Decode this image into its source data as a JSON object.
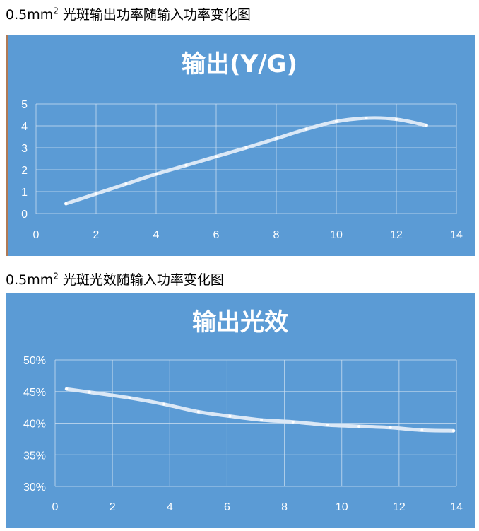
{
  "headings": {
    "chart1": {
      "prefix": "0.5mm",
      "sup": "2",
      "text": " 光斑输出功率随输入功率变化图"
    },
    "chart2": {
      "prefix": "0.5mm",
      "sup": "2",
      "text": " 光斑光效随输入功率变化图"
    }
  },
  "chart_data": [
    {
      "type": "line",
      "title": "输出(Y/G)",
      "xlabel": "",
      "ylabel": "",
      "xlim": [
        0,
        14
      ],
      "ylim": [
        0,
        5
      ],
      "xticks": [
        "0",
        "2",
        "4",
        "6",
        "8",
        "10",
        "12",
        "14"
      ],
      "yticks": [
        "0",
        "1",
        "2",
        "3",
        "4",
        "5"
      ],
      "grid": true,
      "series": [
        {
          "x": [
            1,
            2,
            3,
            4,
            5,
            6,
            7,
            8,
            9,
            10,
            11,
            12,
            13
          ],
          "y": [
            0.45,
            0.9,
            1.35,
            1.8,
            2.2,
            2.6,
            3.0,
            3.42,
            3.85,
            4.2,
            4.35,
            4.3,
            4.02
          ]
        }
      ]
    },
    {
      "type": "line",
      "title": "输出光效",
      "xlabel": "",
      "ylabel": "",
      "xlim": [
        0,
        14
      ],
      "ylim": [
        0.3,
        0.5
      ],
      "xticks": [
        "0",
        "2",
        "4",
        "6",
        "8",
        "10",
        "12",
        "14"
      ],
      "yticks": [
        "30%",
        "35%",
        "40%",
        "45%",
        "50%"
      ],
      "grid": true,
      "series": [
        {
          "x": [
            0.4,
            1.2,
            2.6,
            3.8,
            5.0,
            6.1,
            7.2,
            8.3,
            9.5,
            10.6,
            11.7,
            12.8,
            13.9
          ],
          "y": [
            0.454,
            0.449,
            0.44,
            0.43,
            0.418,
            0.411,
            0.405,
            0.402,
            0.397,
            0.395,
            0.393,
            0.389,
            0.388
          ]
        }
      ]
    }
  ],
  "colors": {
    "panel": "#5b9bd5",
    "line": "#dbe8f6",
    "text": "#ffffff"
  }
}
